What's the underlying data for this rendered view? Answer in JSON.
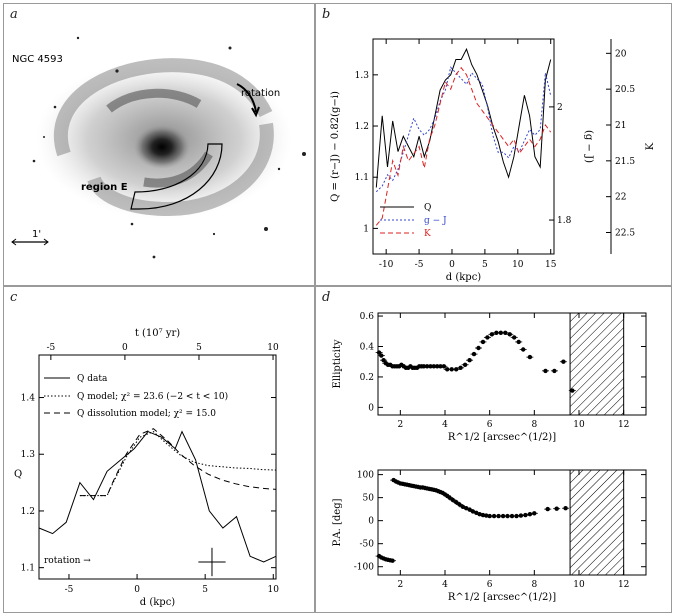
{
  "panel_labels": {
    "a": "a",
    "b": "b",
    "c": "c",
    "d": "d"
  },
  "galaxy_image": {
    "name_label": "NGC 4593",
    "rotation_label": "rotation",
    "region_label": "region E",
    "scale_label": "1'"
  },
  "chart_data": [
    {
      "id": "b",
      "type": "line",
      "xlabel": "d (kpc)",
      "ylabel_left": "Q = (r−J) − 0.82(g−i)",
      "ylabel_right_inner": "(g − J)",
      "ylabel_right_outer": "K",
      "xlim": [
        -12,
        15.5
      ],
      "ylim": [
        0.95,
        1.37
      ],
      "ylim_gJ": [
        1.74,
        2.12
      ],
      "ylim_K": [
        22.8,
        19.8
      ],
      "x_ticks": [
        -10,
        -5,
        0,
        5,
        10,
        15
      ],
      "y_ticks": [
        1,
        1.1,
        1.2,
        1.3
      ],
      "gJ_ticks": [
        1.8,
        2
      ],
      "K_ticks": [
        20,
        20.5,
        21,
        21.5,
        22,
        22.5
      ],
      "legend": [
        "Q",
        "g − J",
        "K"
      ],
      "series": [
        {
          "name": "Q",
          "color": "#000000",
          "dash": "",
          "axis": "Q",
          "x": [
            -11.5,
            -10.6,
            -9.8,
            -9,
            -8.2,
            -7.4,
            -6.6,
            -5.8,
            -5,
            -4.2,
            -3.4,
            -2.6,
            -1.8,
            -1,
            -0.2,
            0.6,
            1.4,
            2.2,
            3,
            3.8,
            4.6,
            5.4,
            6.2,
            7,
            7.8,
            8.6,
            9.4,
            10.2,
            11,
            11.8,
            12.6,
            13.4,
            14.2,
            15
          ],
          "y": [
            1.08,
            1.22,
            1.12,
            1.21,
            1.15,
            1.18,
            1.16,
            1.14,
            1.18,
            1.14,
            1.17,
            1.22,
            1.27,
            1.29,
            1.3,
            1.33,
            1.33,
            1.35,
            1.32,
            1.3,
            1.27,
            1.24,
            1.2,
            1.17,
            1.13,
            1.1,
            1.14,
            1.2,
            1.26,
            1.22,
            1.14,
            1.12,
            1.29,
            1.33
          ]
        },
        {
          "name": "g − J",
          "color": "#3344cc",
          "dash": "2,2",
          "axis": "gJ",
          "x": [
            -11.5,
            -10.6,
            -9.8,
            -9,
            -8.2,
            -7.4,
            -6.6,
            -5.8,
            -5,
            -4.2,
            -3.4,
            -2.6,
            -1.8,
            -1,
            -0.2,
            0.6,
            1.4,
            2.2,
            3,
            3.8,
            4.6,
            5.4,
            6.2,
            7,
            7.8,
            8.6,
            9.4,
            10.2,
            11,
            11.8,
            12.6,
            13.4,
            14.2,
            15
          ],
          "y": [
            1.85,
            1.86,
            1.88,
            1.87,
            1.89,
            1.92,
            1.95,
            1.98,
            1.96,
            1.95,
            1.96,
            1.98,
            2.01,
            2.03,
            2.07,
            2.06,
            2.05,
            2.04,
            2.06,
            2.05,
            2.04,
            2.0,
            1.95,
            1.92,
            1.92,
            1.91,
            1.93,
            1.92,
            1.94,
            1.96,
            1.95,
            1.96,
            2.06,
            2.02
          ]
        },
        {
          "name": "K",
          "color": "#dd2222",
          "dash": "5,3",
          "axis": "K",
          "x": [
            -11.5,
            -10.6,
            -9.8,
            -9,
            -8.2,
            -7.4,
            -6.6,
            -5.8,
            -5,
            -4.2,
            -3.4,
            -2.6,
            -1.8,
            -1,
            -0.2,
            0.6,
            1.4,
            2.2,
            3,
            3.8,
            4.6,
            5.4,
            6.2,
            7,
            7.8,
            8.6,
            9.4,
            10.2,
            11,
            11.8,
            12.6,
            13.4,
            14.2,
            15
          ],
          "y": [
            22.4,
            22.3,
            21.9,
            21.5,
            21.7,
            21.3,
            21.5,
            21.4,
            21.3,
            21.6,
            21.2,
            21.0,
            20.7,
            20.4,
            20.5,
            20.3,
            20.2,
            20.3,
            20.5,
            20.7,
            20.8,
            20.9,
            21.0,
            21.1,
            21.2,
            21.3,
            21.2,
            21.4,
            21.3,
            21.2,
            21.3,
            21.2,
            21.0,
            21.1
          ]
        }
      ]
    },
    {
      "id": "c",
      "type": "line",
      "xlabel": "d (kpc)",
      "ylabel": "Q",
      "top_axis_label": "t (10⁷ yr)",
      "xlim": [
        -7.2,
        10.2
      ],
      "ylim": [
        1.08,
        1.475
      ],
      "x_ticks": [
        -5,
        0,
        5,
        10
      ],
      "top_ticks": [
        -5,
        0,
        5,
        10
      ],
      "top_xlim": [
        -5.8,
        10.2
      ],
      "y_ticks": [
        1.1,
        1.2,
        1.3,
        1.4
      ],
      "legend": [
        "Q data",
        "Q model; χ² = 23.6 (−2 < t < 10)",
        "Q dissolution model; χ² = 15.0"
      ],
      "annotation": "rotation →",
      "error_bar": {
        "x": 5.5,
        "y": 1.11,
        "xerr": 1.0,
        "yerr": 0.025
      },
      "series": [
        {
          "name": "Q data",
          "dash": "",
          "x": [
            -7.2,
            -6.2,
            -5.2,
            -4.2,
            -3.2,
            -2.2,
            -1.2,
            -0.2,
            0.8,
            1.8,
            2.8,
            3.3,
            4.3,
            5.3,
            6.3,
            7.3,
            8.3,
            9.3,
            10.2
          ],
          "y": [
            1.17,
            1.16,
            1.18,
            1.25,
            1.22,
            1.27,
            1.29,
            1.31,
            1.34,
            1.33,
            1.31,
            1.34,
            1.29,
            1.2,
            1.17,
            1.19,
            1.12,
            1.11,
            1.12
          ]
        },
        {
          "name": "Q model",
          "dash": "1.5,2",
          "x": [
            -4.2,
            -2.2,
            -1.8,
            -0.8,
            0.2,
            1.2,
            2.2,
            3.2,
            4.2,
            5.2,
            6.2,
            7.2,
            8.2,
            9.2,
            10.2
          ],
          "y": [
            1.227,
            1.227,
            1.248,
            1.295,
            1.33,
            1.34,
            1.318,
            1.298,
            1.286,
            1.28,
            1.278,
            1.276,
            1.275,
            1.273,
            1.272
          ]
        },
        {
          "name": "Q dissolution model",
          "dash": "6,4",
          "x": [
            -4.2,
            -2.2,
            -1.8,
            -0.8,
            0.2,
            1.2,
            2.2,
            3.2,
            4.2,
            5.2,
            6.2,
            7.2,
            8.2,
            9.2,
            10.2
          ],
          "y": [
            1.227,
            1.227,
            1.25,
            1.3,
            1.335,
            1.345,
            1.325,
            1.3,
            1.28,
            1.265,
            1.255,
            1.248,
            1.243,
            1.24,
            1.238
          ]
        }
      ]
    },
    {
      "id": "d-top",
      "type": "scatter",
      "xlabel": "R^1/2 [arcsec^(1/2)]",
      "ylabel": "Ellipticity",
      "xlim": [
        1,
        13
      ],
      "ylim": [
        -0.05,
        0.62
      ],
      "x_ticks": [
        2,
        4,
        6,
        8,
        10,
        12
      ],
      "y_ticks": [
        0,
        0.2,
        0.4,
        0.6
      ],
      "hatched_region": [
        9.6,
        12
      ],
      "series": [
        {
          "name": "ellipticity",
          "x": [
            1.05,
            1.15,
            1.25,
            1.35,
            1.45,
            1.55,
            1.65,
            1.75,
            1.85,
            1.95,
            2.05,
            2.15,
            2.25,
            2.35,
            2.45,
            2.55,
            2.65,
            2.75,
            2.85,
            2.95,
            3.05,
            3.2,
            3.35,
            3.5,
            3.65,
            3.8,
            3.95,
            4.1,
            4.3,
            4.5,
            4.7,
            4.9,
            5.1,
            5.3,
            5.5,
            5.7,
            5.9,
            6.1,
            6.3,
            6.5,
            6.7,
            6.9,
            7.1,
            7.3,
            7.5,
            7.8,
            8.5,
            8.9,
            9.3,
            9.7
          ],
          "y": [
            0.36,
            0.34,
            0.31,
            0.29,
            0.28,
            0.28,
            0.27,
            0.27,
            0.27,
            0.27,
            0.28,
            0.27,
            0.26,
            0.26,
            0.27,
            0.26,
            0.26,
            0.26,
            0.27,
            0.27,
            0.27,
            0.27,
            0.27,
            0.27,
            0.27,
            0.27,
            0.27,
            0.25,
            0.25,
            0.25,
            0.26,
            0.28,
            0.31,
            0.35,
            0.39,
            0.43,
            0.46,
            0.48,
            0.49,
            0.49,
            0.49,
            0.48,
            0.46,
            0.43,
            0.38,
            0.33,
            0.24,
            0.24,
            0.3,
            0.11
          ]
        }
      ]
    },
    {
      "id": "d-bottom",
      "type": "scatter",
      "xlabel": "R^1/2 [arcsec^(1/2)]",
      "ylabel": "P.A. [deg]",
      "xlim": [
        1,
        13
      ],
      "ylim": [
        -118,
        110
      ],
      "x_ticks": [
        2,
        4,
        6,
        8,
        10,
        12
      ],
      "y_ticks": [
        -100,
        -50,
        0,
        50,
        100
      ],
      "hatched_region": [
        9.6,
        12
      ],
      "series": [
        {
          "name": "position angle",
          "x": [
            1.05,
            1.15,
            1.25,
            1.35,
            1.45,
            1.55,
            1.65,
            1.7,
            1.8,
            1.9,
            2.0,
            2.1,
            2.2,
            2.3,
            2.4,
            2.5,
            2.6,
            2.7,
            2.8,
            2.9,
            3.0,
            3.1,
            3.2,
            3.3,
            3.4,
            3.5,
            3.6,
            3.7,
            3.8,
            3.9,
            4.0,
            4.1,
            4.2,
            4.35,
            4.5,
            4.65,
            4.8,
            4.95,
            5.1,
            5.25,
            5.4,
            5.55,
            5.7,
            5.85,
            6.0,
            6.2,
            6.4,
            6.6,
            6.8,
            7.0,
            7.2,
            7.4,
            7.6,
            7.8,
            8.0,
            8.6,
            9.0,
            9.4
          ],
          "y": [
            -77,
            -80,
            -82,
            -84,
            -85,
            -86,
            -87,
            88,
            85,
            83,
            81,
            80,
            79,
            78,
            77,
            76,
            75,
            74,
            73,
            72,
            72,
            71,
            70,
            69,
            68,
            67,
            66,
            64,
            62,
            60,
            57,
            54,
            50,
            45,
            40,
            35,
            30,
            27,
            24,
            20,
            17,
            14,
            12,
            11,
            10,
            10,
            10,
            10,
            10,
            10,
            10,
            11,
            12,
            14,
            16,
            25,
            26,
            27
          ]
        }
      ]
    }
  ]
}
